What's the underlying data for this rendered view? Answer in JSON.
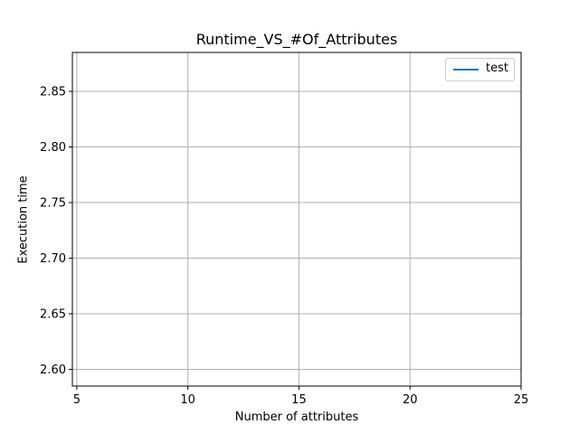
{
  "chart_data": {
    "type": "line",
    "title": "Runtime_VS_#Of_Attributes",
    "xlabel": "Number of attributes",
    "ylabel": "Execution time",
    "xlim": [
      4.8,
      25
    ],
    "ylim": [
      2.585,
      2.885
    ],
    "xticks": [
      5,
      10,
      15,
      20,
      25
    ],
    "xtick_labels": [
      "5",
      "10",
      "15",
      "20",
      "25"
    ],
    "yticks": [
      2.6,
      2.65,
      2.7,
      2.75,
      2.8,
      2.85
    ],
    "ytick_labels": [
      "2.60",
      "2.65",
      "2.70",
      "2.75",
      "2.80",
      "2.85"
    ],
    "grid": true,
    "legend_position": "top-right",
    "series": [
      {
        "name": "test",
        "color": "#1f77b4",
        "x": [],
        "y": []
      }
    ]
  }
}
